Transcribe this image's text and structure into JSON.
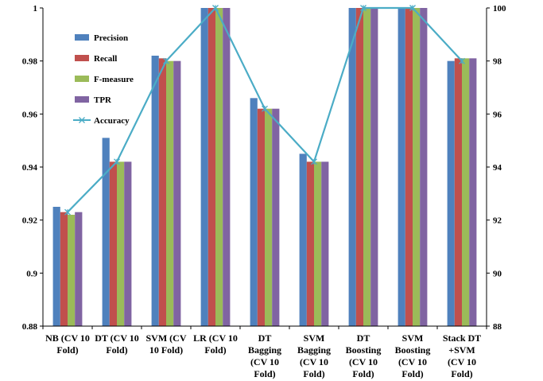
{
  "chart_data": {
    "type": "bar",
    "categories": [
      [
        "NB (CV 10",
        "Fold)"
      ],
      [
        "DT (CV 10",
        "Fold)"
      ],
      [
        "SVM (CV",
        "10 Fold)"
      ],
      [
        "LR (CV 10",
        "Fold)"
      ],
      [
        "DT",
        "Bagging",
        "(CV 10",
        "Fold)"
      ],
      [
        "SVM",
        "Bagging",
        "(CV 10",
        "Fold)"
      ],
      [
        "DT",
        "Boosting",
        "(CV 10",
        "Fold)"
      ],
      [
        "SVM",
        "Boosting",
        "(CV 10",
        "Fold)"
      ],
      [
        "Stack DT",
        "+SVM",
        "(CV 10",
        "Fold)"
      ]
    ],
    "series": [
      {
        "name": "Precision",
        "color": "#4F81BD",
        "values": [
          0.925,
          0.951,
          0.982,
          1.0,
          0.966,
          0.945,
          1.0,
          1.0,
          0.98
        ]
      },
      {
        "name": "Recall",
        "color": "#C0504D",
        "values": [
          0.923,
          0.942,
          0.981,
          1.0,
          0.962,
          0.942,
          1.0,
          1.0,
          0.981
        ]
      },
      {
        "name": "F-measure",
        "color": "#9BBB59",
        "values": [
          0.922,
          0.942,
          0.98,
          1.0,
          0.962,
          0.942,
          1.0,
          1.0,
          0.981
        ]
      },
      {
        "name": "TPR",
        "color": "#8064A2",
        "values": [
          0.923,
          0.942,
          0.98,
          1.0,
          0.962,
          0.942,
          1.0,
          1.0,
          0.981
        ]
      }
    ],
    "line_series": {
      "name": "Accuracy",
      "color": "#4BACC6",
      "axis": "right",
      "values": [
        92.3,
        94.2,
        98.0,
        100.0,
        96.2,
        94.2,
        100.0,
        100.0,
        98.0
      ]
    },
    "y_left": {
      "ylim": [
        0.88,
        1.0
      ],
      "ticks": [
        "0.88",
        "0.9",
        "0.92",
        "0.94",
        "0.96",
        "0.98",
        "1"
      ],
      "tick_values": [
        0.88,
        0.9,
        0.92,
        0.94,
        0.96,
        0.98,
        1.0
      ]
    },
    "y_right": {
      "ylim": [
        88,
        100
      ],
      "ticks": [
        "88",
        "90",
        "92",
        "94",
        "96",
        "98",
        "100"
      ],
      "tick_values": [
        88,
        90,
        92,
        94,
        96,
        98,
        100
      ]
    },
    "legend_position": "top-left",
    "grid": false
  }
}
